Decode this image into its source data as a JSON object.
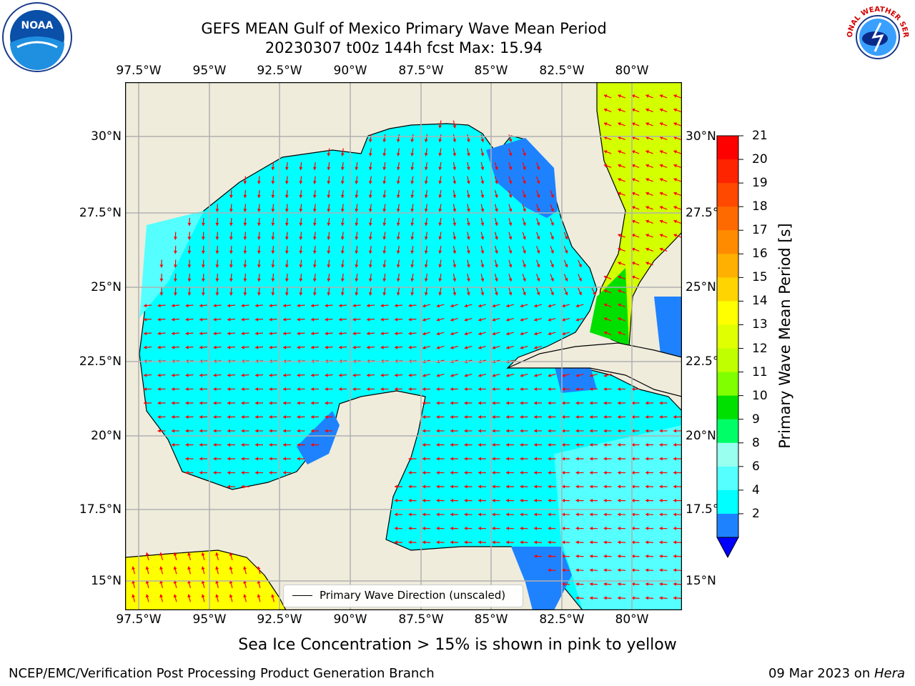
{
  "title": {
    "line1": "GEFS MEAN Gulf of Mexico Primary Wave Mean Period",
    "line2": "20230307 t00z 144h fcst   Max: 15.94"
  },
  "map": {
    "lon_ticks": [
      "97.5°W",
      "95°W",
      "92.5°W",
      "90°W",
      "87.5°W",
      "85°W",
      "82.5°W",
      "80°W"
    ],
    "lat_ticks": [
      "30°N",
      "27.5°N",
      "25°N",
      "22.5°N",
      "20°N",
      "17.5°N",
      "15°N"
    ],
    "land_color": "#efecdc",
    "ocean_color": "#00ffff",
    "legend_label": "Primary Wave Direction (unscaled)"
  },
  "colorbar": {
    "label": "Primary Wave Mean Period [s]",
    "ticks": [
      "21",
      "20",
      "19",
      "18",
      "17",
      "16",
      "15",
      "14",
      "13",
      "12",
      "11",
      "10",
      "9",
      "8",
      "6",
      "4",
      "2"
    ],
    "colors_top_down": [
      "#ff0000",
      "#ff2400",
      "#ff4800",
      "#ff6a00",
      "#ff8c00",
      "#ffb000",
      "#ffd400",
      "#ffff00",
      "#e0ff00",
      "#c0ff00",
      "#80ff00",
      "#00e000",
      "#00ff66",
      "#99ffee",
      "#55ffff",
      "#00ffff",
      "#1e82ff"
    ],
    "extend_color": "#0000ff"
  },
  "logos": {
    "left": "NOAA",
    "right": "NATIONAL WEATHER SERVICE"
  },
  "note": "Sea Ice Concentration > 15% is shown in pink to yellow",
  "footer": {
    "left": "NCEP/EMC/Verification Post Processing Product Generation Branch",
    "right_prefix": "09 Mar 2023 on ",
    "right_host": "Hera"
  }
}
